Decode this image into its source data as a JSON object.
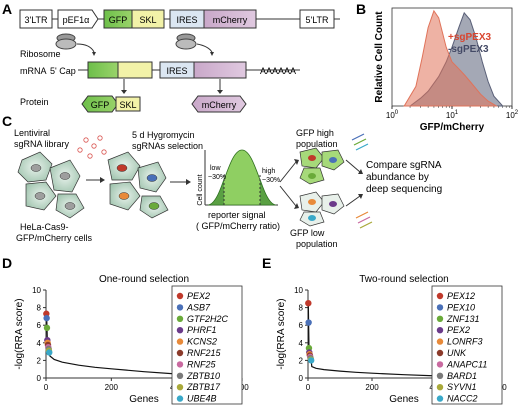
{
  "panels": {
    "A": {
      "letter": "A",
      "construct": [
        "3'LTR",
        "pEF1α",
        "GFP",
        "SKL",
        "IRES",
        "mCherry",
        "5'LTR"
      ],
      "ribosome": "Ribosome",
      "mrna": "mRNA",
      "cap": "5' Cap",
      "polyA": "AAAAAA",
      "protein": "Protein",
      "protein_gfp": "GFP",
      "protein_skl": "SKL",
      "protein_mcherry": "mCherry"
    },
    "B": {
      "letter": "B",
      "legend_plus": "+sgPEX3",
      "legend_minus": "-sgPEX3"
    },
    "C": {
      "letter": "C",
      "library": [
        "Lentiviral",
        "sgRNA library"
      ],
      "selection": [
        "5 d Hygromycin",
        "sgRNAs selection"
      ],
      "cells": [
        "HeLa-Cas9-",
        "GFP/mCherry cells"
      ],
      "histo_ylabel": "Cell count",
      "low": [
        "low",
        "~30%"
      ],
      "high": [
        "high",
        "~30%"
      ],
      "reporter": [
        "reporter signal",
        "( GFP/mCherry ratio)"
      ],
      "gfp_high": [
        "GFP high",
        "population"
      ],
      "gfp_low": [
        "GFP low",
        "population"
      ],
      "compare": [
        "Compare sgRNA",
        "abundance by",
        "deep sequencing"
      ]
    },
    "D": {
      "letter": "D"
    },
    "E": {
      "letter": "E"
    }
  },
  "chart_data": [
    {
      "panel": "B",
      "type": "area",
      "title": "",
      "xlabel": "GFP/mCherry",
      "ylabel": "Relative Cell Count",
      "xscale": "log",
      "xticks": [
        "10^0",
        "10^1",
        "10^2"
      ],
      "xlim": [
        1,
        100
      ],
      "ylim": [
        0,
        1
      ],
      "grid": false,
      "legend": "top-right",
      "series": [
        {
          "name": "+sgPEX3",
          "color": "#e0735a",
          "x": [
            1.6,
            2.5,
            3.2,
            4.0,
            5.0,
            6.0,
            8.0,
            10,
            13,
            16,
            20,
            30,
            40,
            55
          ],
          "values": [
            0.0,
            0.2,
            0.5,
            0.8,
            0.97,
            0.9,
            0.6,
            0.45,
            0.38,
            0.32,
            0.25,
            0.12,
            0.05,
            0.0
          ]
        },
        {
          "name": "-sgPEX3",
          "color": "#5a6078",
          "x": [
            2.0,
            3.0,
            4.0,
            6.0,
            8.0,
            10,
            13,
            16,
            20,
            25,
            32,
            40,
            50,
            70
          ],
          "values": [
            0.0,
            0.08,
            0.15,
            0.3,
            0.45,
            0.6,
            0.8,
            0.95,
            0.88,
            0.7,
            0.45,
            0.25,
            0.1,
            0.0
          ]
        }
      ]
    },
    {
      "panel": "D",
      "type": "scatter",
      "title": "One-round selection",
      "xlabel": "Genes",
      "ylabel": "-log(RRA score)",
      "xlim": [
        0,
        600
      ],
      "ylim": [
        0,
        10
      ],
      "xticks": [
        0,
        200,
        400,
        600
      ],
      "yticks": [
        0,
        2,
        4,
        6,
        8,
        10
      ],
      "legend": "right",
      "curve": {
        "x": [
          12,
          25,
          50,
          100,
          150,
          200,
          300,
          400,
          500,
          600
        ],
        "values": [
          2.5,
          2.1,
          1.8,
          1.45,
          1.22,
          1.05,
          0.72,
          0.45,
          0.22,
          0.0
        ]
      },
      "points": [
        {
          "gene": "PEX2",
          "x": 1,
          "value": 7.3,
          "color": "#c0392b"
        },
        {
          "gene": "ASB7",
          "x": 2,
          "value": 6.8,
          "color": "#4a70b8"
        },
        {
          "gene": "GTF2H2C",
          "x": 3,
          "value": 5.7,
          "color": "#6aaa3a"
        },
        {
          "gene": "PHRF1",
          "x": 4,
          "value": 4.3,
          "color": "#6b3a8a"
        },
        {
          "gene": "KCNS2",
          "x": 5,
          "value": 4.0,
          "color": "#e88a3a"
        },
        {
          "gene": "RNF215",
          "x": 6,
          "value": 3.75,
          "color": "#8b3a2a"
        },
        {
          "gene": "RNF25",
          "x": 7,
          "value": 3.5,
          "color": "#c96aa0"
        },
        {
          "gene": "ZBTB10",
          "x": 8,
          "value": 3.3,
          "color": "#7a7a7a"
        },
        {
          "gene": "ZBTB17",
          "x": 9,
          "value": 3.1,
          "color": "#a9a93a"
        },
        {
          "gene": "UBE4B",
          "x": 10,
          "value": 2.9,
          "color": "#3aa9c9"
        }
      ]
    },
    {
      "panel": "E",
      "type": "scatter",
      "title": "Two-round selection",
      "xlabel": "Genes",
      "ylabel": "-log(RRA score)",
      "xlim": [
        0,
        600
      ],
      "ylim": [
        0,
        10
      ],
      "xticks": [
        0,
        200,
        400,
        600
      ],
      "yticks": [
        0,
        2,
        4,
        6,
        8,
        10
      ],
      "legend": "right",
      "curve": {
        "x": [
          12,
          25,
          50,
          100,
          150,
          200,
          300,
          400,
          500,
          600
        ],
        "values": [
          1.3,
          1.1,
          0.95,
          0.78,
          0.65,
          0.55,
          0.38,
          0.24,
          0.12,
          0.0
        ]
      },
      "points": [
        {
          "gene": "PEX12",
          "x": 1,
          "value": 8.5,
          "color": "#c0392b"
        },
        {
          "gene": "PEX10",
          "x": 2,
          "value": 6.3,
          "color": "#4a70b8"
        },
        {
          "gene": "ZNF131",
          "x": 3,
          "value": 3.4,
          "color": "#6aaa3a"
        },
        {
          "gene": "PEX2",
          "x": 4,
          "value": 2.9,
          "color": "#6b3a8a"
        },
        {
          "gene": "LONRF3",
          "x": 5,
          "value": 2.7,
          "color": "#e88a3a"
        },
        {
          "gene": "UNK",
          "x": 6,
          "value": 2.55,
          "color": "#8b3a2a"
        },
        {
          "gene": "ANAPC11",
          "x": 7,
          "value": 2.4,
          "color": "#c96aa0"
        },
        {
          "gene": "BARD1",
          "x": 8,
          "value": 2.25,
          "color": "#7a7a7a"
        },
        {
          "gene": "SYVN1",
          "x": 9,
          "value": 2.1,
          "color": "#a9a93a"
        },
        {
          "gene": "NACC2",
          "x": 10,
          "value": 2.0,
          "color": "#3aa9c9"
        }
      ]
    }
  ]
}
